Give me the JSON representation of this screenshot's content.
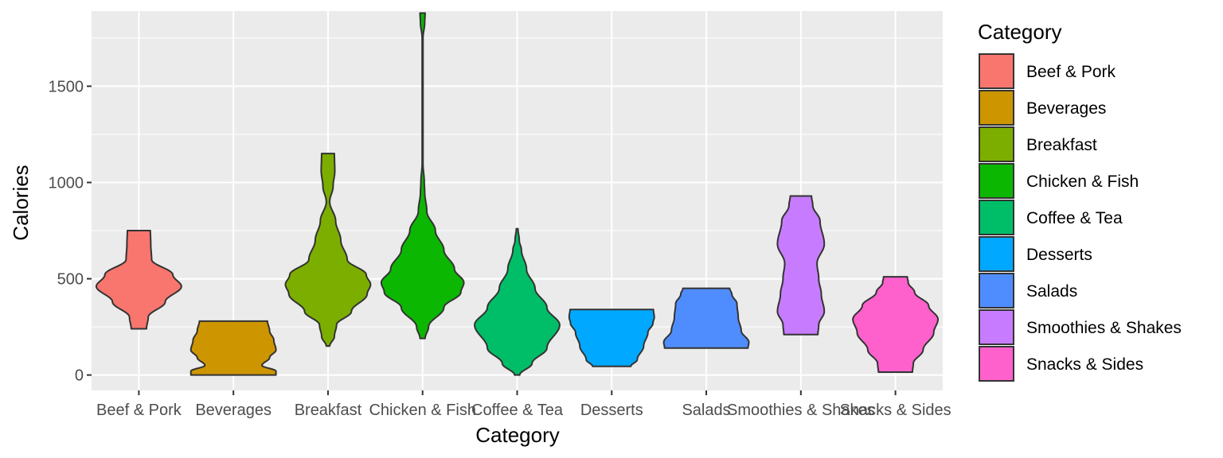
{
  "chart_data": {
    "type": "violin",
    "xlabel": "Category",
    "ylabel": "Calories",
    "ylim": [
      -80,
      1890
    ],
    "y_ticks": [
      0,
      500,
      1000,
      1500
    ],
    "grid": true,
    "legend": {
      "title": "Category",
      "position": "right"
    },
    "categories": [
      "Beef & Pork",
      "Beverages",
      "Breakfast",
      "Chicken & Fish",
      "Coffee & Tea",
      "Desserts",
      "Salads",
      "Smoothies & Shakes",
      "Snacks & Sides"
    ],
    "colors": [
      "#F8766D",
      "#CD9600",
      "#7CAE00",
      "#0CB702",
      "#00BE67",
      "#00A9FF",
      "#4F8DFF",
      "#C77CFF",
      "#FF61CC"
    ],
    "series": [
      {
        "name": "Beef & Pork",
        "min": 240,
        "max": 750,
        "density": [
          [
            240,
            0.18
          ],
          [
            300,
            0.22
          ],
          [
            380,
            0.62
          ],
          [
            460,
            1.0
          ],
          [
            520,
            0.8
          ],
          [
            600,
            0.3
          ],
          [
            680,
            0.28
          ],
          [
            750,
            0.27
          ]
        ]
      },
      {
        "name": "Beverages",
        "min": 0,
        "max": 280,
        "density": [
          [
            0,
            1.0
          ],
          [
            20,
            1.0
          ],
          [
            50,
            0.67
          ],
          [
            90,
            0.85
          ],
          [
            130,
            1.0
          ],
          [
            180,
            0.95
          ],
          [
            230,
            0.85
          ],
          [
            280,
            0.8
          ]
        ]
      },
      {
        "name": "Breakfast",
        "min": 150,
        "max": 1150,
        "density": [
          [
            150,
            0.04
          ],
          [
            200,
            0.15
          ],
          [
            260,
            0.2
          ],
          [
            330,
            0.55
          ],
          [
            420,
            0.92
          ],
          [
            470,
            1.0
          ],
          [
            520,
            0.9
          ],
          [
            600,
            0.45
          ],
          [
            700,
            0.3
          ],
          [
            800,
            0.18
          ],
          [
            900,
            0.04
          ],
          [
            980,
            0.12
          ],
          [
            1060,
            0.16
          ],
          [
            1150,
            0.15
          ]
        ]
      },
      {
        "name": "Chicken & Fish",
        "min": 190,
        "max": 1880,
        "density": [
          [
            190,
            0.06
          ],
          [
            250,
            0.14
          ],
          [
            350,
            0.5
          ],
          [
            430,
            0.9
          ],
          [
            480,
            0.97
          ],
          [
            550,
            0.75
          ],
          [
            650,
            0.5
          ],
          [
            750,
            0.3
          ],
          [
            850,
            0.1
          ],
          [
            950,
            0.05
          ],
          [
            1000,
            0.04
          ],
          [
            1100,
            0.01
          ],
          [
            1500,
            0.01
          ],
          [
            1750,
            0.01
          ],
          [
            1830,
            0.05
          ],
          [
            1880,
            0.06
          ]
        ]
      },
      {
        "name": "Coffee & Tea",
        "min": 0,
        "max": 760,
        "density": [
          [
            0,
            0.06
          ],
          [
            60,
            0.35
          ],
          [
            140,
            0.7
          ],
          [
            260,
            1.0
          ],
          [
            350,
            0.7
          ],
          [
            450,
            0.42
          ],
          [
            550,
            0.22
          ],
          [
            650,
            0.1
          ],
          [
            700,
            0.05
          ],
          [
            760,
            0.02
          ]
        ]
      },
      {
        "name": "Desserts",
        "min": 45,
        "max": 340,
        "density": [
          [
            45,
            0.45
          ],
          [
            80,
            0.6
          ],
          [
            150,
            0.75
          ],
          [
            220,
            0.85
          ],
          [
            270,
            0.97
          ],
          [
            300,
            1.0
          ],
          [
            340,
            0.98
          ]
        ]
      },
      {
        "name": "Salads",
        "min": 140,
        "max": 450,
        "density": [
          [
            140,
            0.98
          ],
          [
            170,
            1.0
          ],
          [
            230,
            0.82
          ],
          [
            300,
            0.75
          ],
          [
            370,
            0.72
          ],
          [
            420,
            0.6
          ],
          [
            450,
            0.55
          ]
        ]
      },
      {
        "name": "Smoothies & Shakes",
        "min": 210,
        "max": 930,
        "density": [
          [
            210,
            0.4
          ],
          [
            260,
            0.42
          ],
          [
            330,
            0.55
          ],
          [
            420,
            0.48
          ],
          [
            500,
            0.42
          ],
          [
            580,
            0.38
          ],
          [
            680,
            0.55
          ],
          [
            800,
            0.45
          ],
          [
            880,
            0.28
          ],
          [
            930,
            0.25
          ]
        ]
      },
      {
        "name": "Snacks & Sides",
        "min": 15,
        "max": 510,
        "density": [
          [
            15,
            0.4
          ],
          [
            60,
            0.42
          ],
          [
            130,
            0.65
          ],
          [
            220,
            0.9
          ],
          [
            290,
            1.0
          ],
          [
            360,
            0.78
          ],
          [
            430,
            0.45
          ],
          [
            480,
            0.3
          ],
          [
            510,
            0.28
          ]
        ]
      }
    ]
  }
}
